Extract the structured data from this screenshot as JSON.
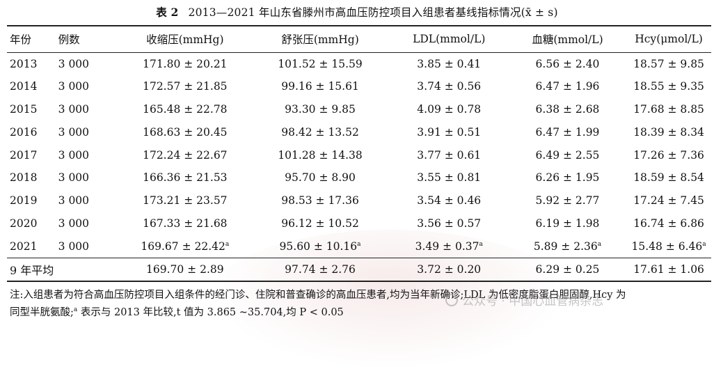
{
  "title": {
    "label": "表 2",
    "text": "2013—2021 年山东省滕州市高血压防控项目入组患者基线指标情况",
    "stat": "(x̄ ± s)"
  },
  "columns": [
    "年份",
    "例数",
    "收缩压(mmHg)",
    "舒张压(mmHg)",
    "LDL(mmol/L)",
    "血糖(mmol/L)",
    "Hcy(μmol/L)"
  ],
  "rows": [
    {
      "year": "2013",
      "n": "3 000",
      "sbp": "171.80 ± 20.21",
      "dbp": "101.52 ± 15.59",
      "ldl": "3.85 ± 0.41",
      "glu": "6.56 ± 2.40",
      "hcy": "18.57 ± 9.85",
      "mark": ""
    },
    {
      "year": "2014",
      "n": "3 000",
      "sbp": "172.57 ± 21.85",
      "dbp": "99.16 ± 15.61",
      "ldl": "3.74 ± 0.56",
      "glu": "6.47 ± 1.96",
      "hcy": "18.55 ± 9.35",
      "mark": ""
    },
    {
      "year": "2015",
      "n": "3 000",
      "sbp": "165.48 ± 22.78",
      "dbp": "93.30 ± 9.85",
      "ldl": "4.09 ± 0.78",
      "glu": "6.38 ± 2.68",
      "hcy": "17.68 ± 8.85",
      "mark": ""
    },
    {
      "year": "2016",
      "n": "3 000",
      "sbp": "168.63 ± 20.45",
      "dbp": "98.42 ± 13.52",
      "ldl": "3.91 ± 0.51",
      "glu": "6.47 ± 1.99",
      "hcy": "18.39 ± 8.34",
      "mark": ""
    },
    {
      "year": "2017",
      "n": "3 000",
      "sbp": "172.24 ± 22.67",
      "dbp": "101.28 ± 14.38",
      "ldl": "3.77 ± 0.61",
      "glu": "6.49 ± 2.55",
      "hcy": "17.26 ± 7.36",
      "mark": ""
    },
    {
      "year": "2018",
      "n": "3 000",
      "sbp": "166.36 ± 21.53",
      "dbp": "95.70 ± 8.90",
      "ldl": "3.55 ± 0.81",
      "glu": "6.26 ± 1.95",
      "hcy": "18.59 ± 8.54",
      "mark": ""
    },
    {
      "year": "2019",
      "n": "3 000",
      "sbp": "173.21 ± 23.57",
      "dbp": "98.53 ± 17.36",
      "ldl": "3.54 ± 0.46",
      "glu": "5.92 ± 2.77",
      "hcy": "17.24 ± 7.45",
      "mark": ""
    },
    {
      "year": "2020",
      "n": "3 000",
      "sbp": "167.33 ± 21.68",
      "dbp": "96.12 ± 10.52",
      "ldl": "3.56 ± 0.57",
      "glu": "6.19 ± 1.98",
      "hcy": "16.74 ± 6.86",
      "mark": ""
    },
    {
      "year": "2021",
      "n": "3 000",
      "sbp": "169.67 ± 22.42",
      "dbp": "95.60 ± 10.16",
      "ldl": "3.49 ± 0.37",
      "glu": "5.89 ± 2.36",
      "hcy": "15.48 ± 6.46",
      "mark": "a"
    }
  ],
  "average": {
    "label": "9 年平均",
    "sbp": "169.70 ± 2.89",
    "dbp": "97.74 ± 2.76",
    "ldl": "3.72 ± 0.20",
    "glu": "6.29 ± 0.25",
    "hcy": "17.61 ± 1.06"
  },
  "note": {
    "line1": "注:入组患者为符合高血压防控项目入组条件的经门诊、住院和普查确诊的高血压患者,均为当年新确诊;LDL 为低密度脂蛋白胆固醇,Hcy 为",
    "line2_a": "同型半胱氨酸;",
    "sup": "a",
    "line2_b": " 表示与 2013 年比较,t 值为 3.865 ~35.704,均 P < 0.05"
  },
  "watermark": {
    "text": "公众号 · 中国心血管病杂志"
  }
}
